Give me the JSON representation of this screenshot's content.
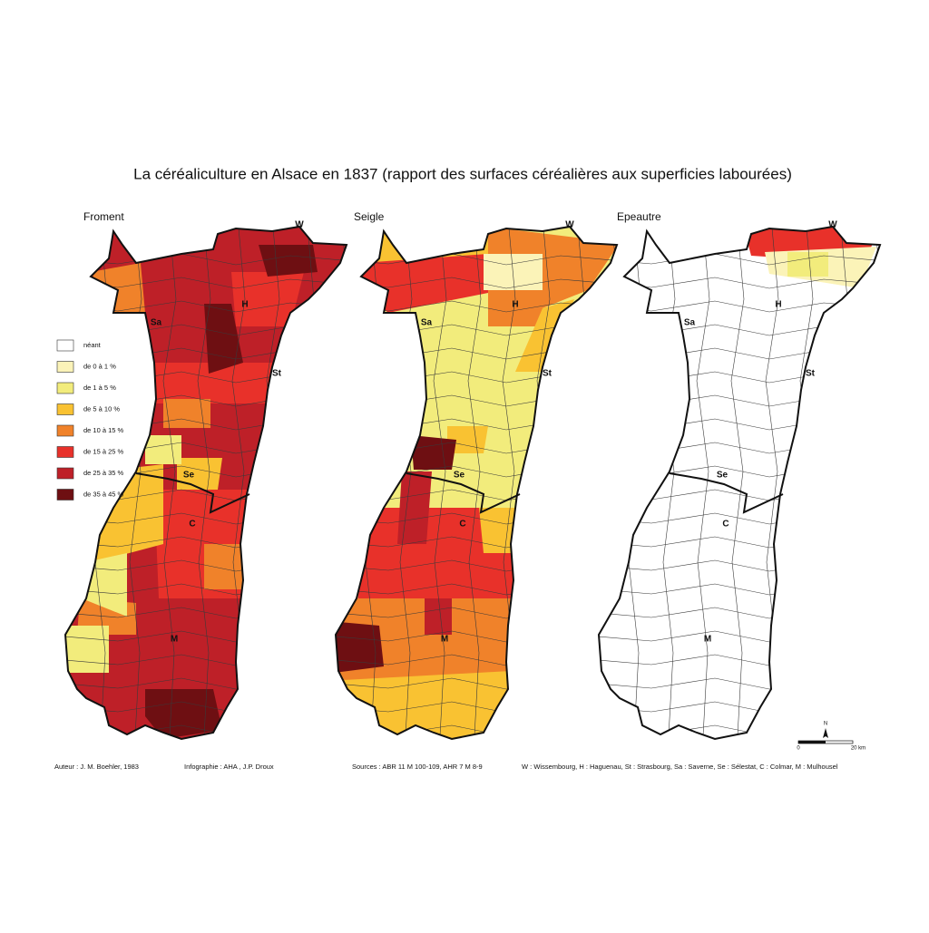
{
  "title": "La céréaliculture en Alsace en 1837 (rapport des surfaces céréalières aux superficies labourées)",
  "maps": [
    {
      "label": "Froment"
    },
    {
      "label": "Seigle"
    },
    {
      "label": "Epeautre"
    }
  ],
  "places": [
    "W",
    "H",
    "Sa",
    "St",
    "Se",
    "C",
    "M"
  ],
  "legend": [
    {
      "label": "néant",
      "color": "#ffffff"
    },
    {
      "label": "de 0 à 1 %",
      "color": "#fbf3b8"
    },
    {
      "label": "de 1 à 5 %",
      "color": "#f2ec7c"
    },
    {
      "label": "de 5 à 10 %",
      "color": "#f9c232"
    },
    {
      "label": "de 10 à 15 %",
      "color": "#f0822a"
    },
    {
      "label": "de 15 à 25 %",
      "color": "#e8312a"
    },
    {
      "label": "de 25 à 35 %",
      "color": "#be2028"
    },
    {
      "label": "de 35 à 45 %",
      "color": "#6e0f12"
    }
  ],
  "credits": [
    "Auteur : J. M. Boehler, 1983",
    "Infographie : AHA , J.P. Droux",
    "Sources : ABR 11 M 100-109, AHR 7 M 8-9",
    "W : Wissembourg, H : Haguenau, St : Strasbourg, Sa : Saverne, Se : Sélestat, C : Colmar, M : Mulhousel"
  ],
  "scale": {
    "north": "N",
    "start": "0",
    "end": "20 km"
  }
}
